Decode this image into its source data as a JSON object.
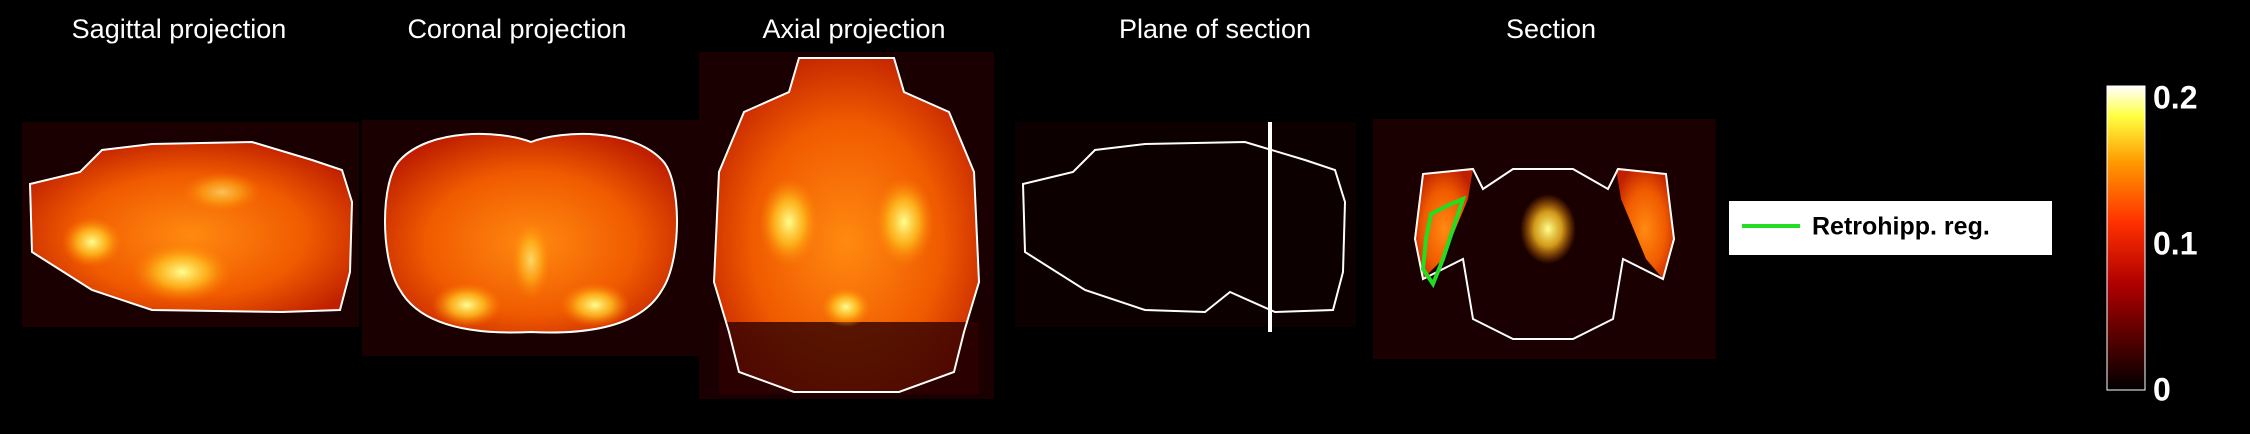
{
  "panels": [
    {
      "title": "Sagittal projection"
    },
    {
      "title": "Coronal projection"
    },
    {
      "title": "Axial projection"
    },
    {
      "title": "Plane of section"
    },
    {
      "title": "Section"
    }
  ],
  "legend": {
    "label": "Retrohipp. reg."
  },
  "colorbar": {
    "ticks": [
      0.2,
      0.1,
      0
    ]
  }
}
